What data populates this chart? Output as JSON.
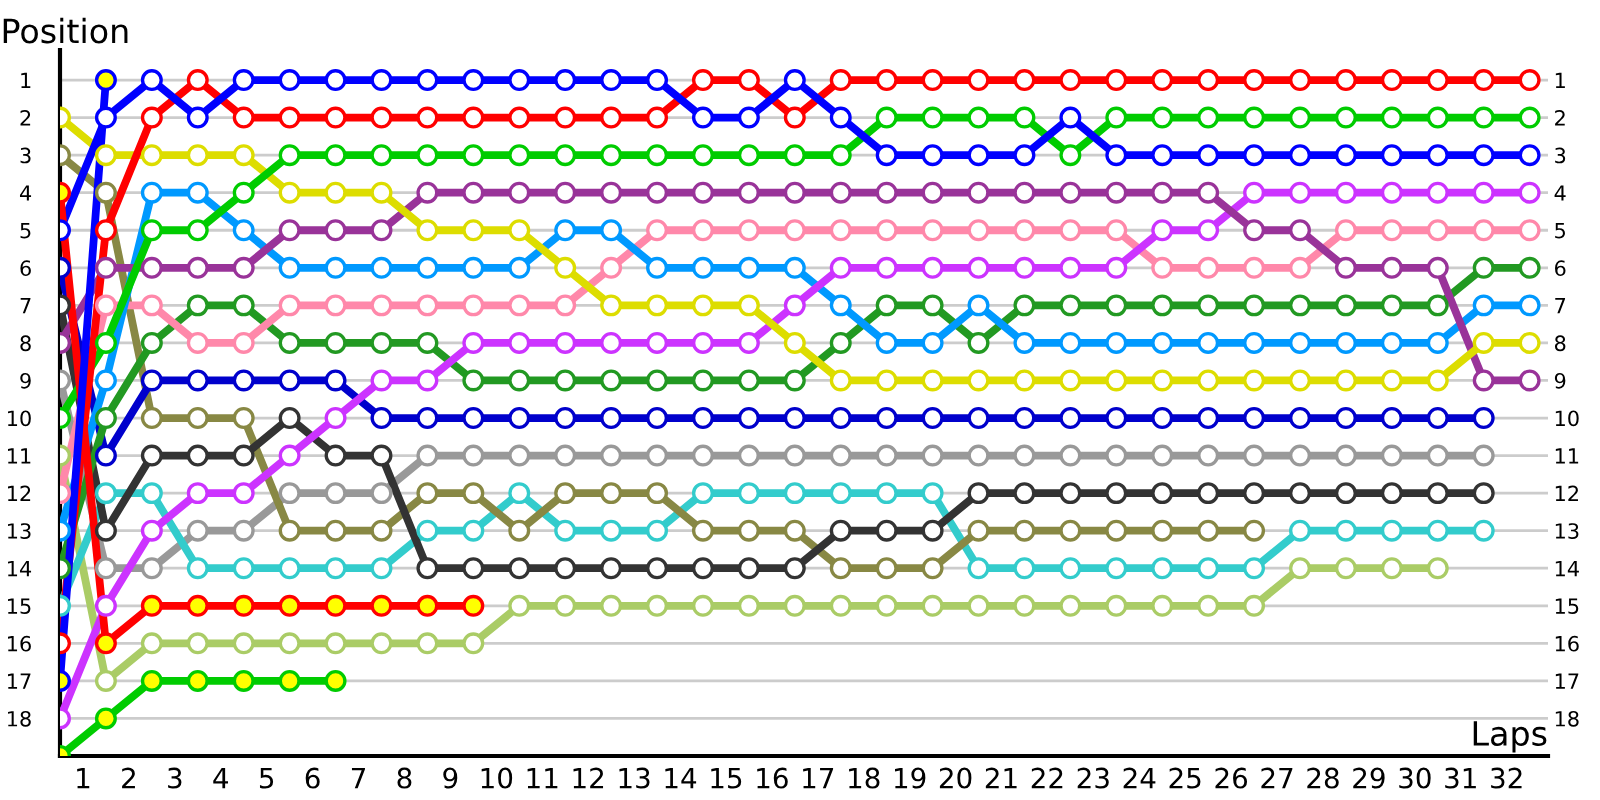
{
  "chart_data": {
    "type": "line",
    "xlabel": "Laps",
    "ylabel": "Position",
    "marker": "circle",
    "line_style": "solid",
    "grid": true,
    "x": [
      0,
      1,
      2,
      3,
      4,
      5,
      6,
      7,
      8,
      9,
      10,
      11,
      12,
      13,
      14,
      15,
      16,
      17,
      18,
      19,
      20,
      21,
      22,
      23,
      24,
      25,
      26,
      27,
      28,
      29,
      30,
      31,
      32
    ],
    "xlim": [
      0,
      32.4
    ],
    "xticks": [
      {
        "value": 0.5,
        "label": "1"
      },
      {
        "value": 1.5,
        "label": "2"
      },
      {
        "value": 2.5,
        "label": "3"
      },
      {
        "value": 3.5,
        "label": "4"
      },
      {
        "value": 4.5,
        "label": "5"
      },
      {
        "value": 5.5,
        "label": "6"
      },
      {
        "value": 6.5,
        "label": "7"
      },
      {
        "value": 7.5,
        "label": "8"
      },
      {
        "value": 8.5,
        "label": "9"
      },
      {
        "value": 9.5,
        "label": "10"
      },
      {
        "value": 10.5,
        "label": "11"
      },
      {
        "value": 11.5,
        "label": "12"
      },
      {
        "value": 12.5,
        "label": "13"
      },
      {
        "value": 13.5,
        "label": "14"
      },
      {
        "value": 14.5,
        "label": "15"
      },
      {
        "value": 15.5,
        "label": "16"
      },
      {
        "value": 16.5,
        "label": "17"
      },
      {
        "value": 17.5,
        "label": "18"
      },
      {
        "value": 18.5,
        "label": "19"
      },
      {
        "value": 19.5,
        "label": "20"
      },
      {
        "value": 20.5,
        "label": "21"
      },
      {
        "value": 21.5,
        "label": "22"
      },
      {
        "value": 22.5,
        "label": "23"
      },
      {
        "value": 23.5,
        "label": "24"
      },
      {
        "value": 24.5,
        "label": "25"
      },
      {
        "value": 25.5,
        "label": "26"
      },
      {
        "value": 26.5,
        "label": "27"
      },
      {
        "value": 27.5,
        "label": "28"
      },
      {
        "value": 28.5,
        "label": "29"
      },
      {
        "value": 29.5,
        "label": "30"
      },
      {
        "value": 30.5,
        "label": "31"
      },
      {
        "value": 31.5,
        "label": "32"
      }
    ],
    "ylim": [
      19,
      0.2
    ],
    "yticks": [
      1,
      2,
      3,
      4,
      5,
      6,
      7,
      8,
      9,
      10,
      11,
      12,
      13,
      14,
      15,
      16,
      17,
      18
    ],
    "y2lim": [
      19,
      0.2
    ],
    "y2ticks": [
      1,
      2,
      3,
      4,
      5,
      6,
      7,
      8,
      9,
      10,
      11,
      12,
      13,
      14,
      15,
      16,
      17,
      18
    ],
    "series": [
      {
        "color": "#aacc66",
        "values": [
          11,
          17,
          16,
          16,
          16,
          16,
          16,
          16,
          16,
          16,
          15,
          15,
          15,
          15,
          15,
          15,
          15,
          15,
          15,
          15,
          15,
          15,
          15,
          15,
          15,
          15,
          15,
          14,
          14,
          14,
          14,
          null,
          null
        ]
      },
      {
        "color": "#999999",
        "values": [
          9,
          14,
          14,
          13,
          13,
          12,
          12,
          12,
          11,
          11,
          11,
          11,
          11,
          11,
          11,
          11,
          11,
          11,
          11,
          11,
          11,
          11,
          11,
          11,
          11,
          11,
          11,
          11,
          11,
          11,
          11,
          11,
          null
        ]
      },
      {
        "color": "#33cccc",
        "values": [
          15,
          12,
          12,
          14,
          14,
          14,
          14,
          14,
          13,
          13,
          12,
          13,
          13,
          13,
          12,
          12,
          12,
          12,
          12,
          12,
          14,
          14,
          14,
          14,
          14,
          14,
          14,
          13,
          13,
          13,
          13,
          13,
          null
        ]
      },
      {
        "color": "#888844",
        "values": [
          3,
          4,
          10,
          10,
          10,
          13,
          13,
          13,
          12,
          12,
          13,
          12,
          12,
          12,
          13,
          13,
          13,
          14,
          14,
          14,
          13,
          13,
          13,
          13,
          13,
          13,
          13,
          null,
          null,
          null,
          null,
          null,
          null
        ]
      },
      {
        "color": "#333333",
        "values": [
          7,
          13,
          11,
          11,
          11,
          10,
          11,
          11,
          14,
          14,
          14,
          14,
          14,
          14,
          14,
          14,
          14,
          13,
          13,
          13,
          12,
          12,
          12,
          12,
          12,
          12,
          12,
          12,
          12,
          12,
          12,
          12,
          null
        ]
      },
      {
        "color": "#0000cc",
        "values": [
          6,
          11,
          9,
          9,
          9,
          9,
          9,
          10,
          10,
          10,
          10,
          10,
          10,
          10,
          10,
          10,
          10,
          10,
          10,
          10,
          10,
          10,
          10,
          10,
          10,
          10,
          10,
          10,
          10,
          10,
          10,
          10,
          null
        ]
      },
      {
        "color": "#229922",
        "values": [
          14,
          10,
          8,
          7,
          7,
          8,
          8,
          8,
          8,
          9,
          9,
          9,
          9,
          9,
          9,
          9,
          9,
          8,
          7,
          7,
          8,
          7,
          7,
          7,
          7,
          7,
          7,
          7,
          7,
          7,
          7,
          6,
          6
        ]
      },
      {
        "color": "#ff88aa",
        "values": [
          12,
          7,
          7,
          8,
          8,
          7,
          7,
          7,
          7,
          7,
          7,
          7,
          6,
          5,
          5,
          5,
          5,
          5,
          5,
          5,
          5,
          5,
          5,
          5,
          6,
          6,
          6,
          6,
          5,
          5,
          5,
          5,
          5
        ]
      },
      {
        "color": "#0099ff",
        "values": [
          13,
          9,
          4,
          4,
          5,
          6,
          6,
          6,
          6,
          6,
          6,
          5,
          5,
          6,
          6,
          6,
          6,
          7,
          8,
          8,
          7,
          8,
          8,
          8,
          8,
          8,
          8,
          8,
          8,
          8,
          8,
          7,
          7
        ]
      },
      {
        "color": "#cc33ff",
        "values": [
          18,
          15,
          13,
          12,
          12,
          11,
          10,
          9,
          9,
          8,
          8,
          8,
          8,
          8,
          8,
          8,
          7,
          6,
          6,
          6,
          6,
          6,
          6,
          6,
          5,
          5,
          4,
          4,
          4,
          4,
          4,
          4,
          4
        ]
      },
      {
        "color": "#993399",
        "values": [
          8,
          6,
          6,
          6,
          6,
          5,
          5,
          5,
          4,
          4,
          4,
          4,
          4,
          4,
          4,
          4,
          4,
          4,
          4,
          4,
          4,
          4,
          4,
          4,
          4,
          4,
          5,
          5,
          6,
          6,
          6,
          9,
          9
        ]
      },
      {
        "color": "#dddd00",
        "values": [
          2,
          3,
          3,
          3,
          3,
          4,
          4,
          4,
          5,
          5,
          5,
          6,
          7,
          7,
          7,
          7,
          8,
          9,
          9,
          9,
          9,
          9,
          9,
          9,
          9,
          9,
          9,
          9,
          9,
          9,
          9,
          8,
          8
        ]
      },
      {
        "color": "#00cc00",
        "values": [
          10,
          8,
          5,
          5,
          4,
          3,
          3,
          3,
          3,
          3,
          3,
          3,
          3,
          3,
          3,
          3,
          3,
          3,
          2,
          2,
          2,
          2,
          3,
          2,
          2,
          2,
          2,
          2,
          2,
          2,
          2,
          2,
          2
        ]
      },
      {
        "color": "#ff0000",
        "values": [
          16,
          5,
          2,
          1,
          2,
          2,
          2,
          2,
          2,
          2,
          2,
          2,
          2,
          2,
          1,
          1,
          2,
          1,
          1,
          1,
          1,
          1,
          1,
          1,
          1,
          1,
          1,
          1,
          1,
          1,
          1,
          1,
          1
        ]
      },
      {
        "color": "#0000ff",
        "values": [
          5,
          2,
          1,
          2,
          1,
          1,
          1,
          1,
          1,
          1,
          1,
          1,
          1,
          1,
          2,
          2,
          1,
          2,
          3,
          3,
          3,
          3,
          2,
          3,
          3,
          3,
          3,
          3,
          3,
          3,
          3,
          3,
          3
        ]
      },
      {
        "color": "#ff0000",
        "colors": [
          "#ffff00",
          "#ffff00",
          "#ffff00",
          "#ffff00",
          "#ffff00",
          "#ffff00",
          "#ffff00",
          "#ffff00",
          "#ffff00",
          "#ffff00",
          null,
          null,
          null,
          null,
          null,
          null,
          null,
          null,
          null,
          null,
          null,
          null,
          null,
          null,
          null,
          null,
          null,
          null,
          null,
          null,
          null,
          null,
          null
        ],
        "values": [
          4,
          16,
          15,
          15,
          15,
          15,
          15,
          15,
          15,
          15,
          null,
          null,
          null,
          null,
          null,
          null,
          null,
          null,
          null,
          null,
          null,
          null,
          null,
          null,
          null,
          null,
          null,
          null,
          null,
          null,
          null,
          null,
          null
        ]
      },
      {
        "color": "#00cc00",
        "colors": [
          "#ffff00",
          "#ffff00",
          "#ffff00",
          "#ffff00",
          "#ffff00",
          "#ffff00",
          "#ffff00",
          null,
          null,
          null,
          null,
          null,
          null,
          null,
          null,
          null,
          null,
          null,
          null,
          null,
          null,
          null,
          null,
          null,
          null,
          null,
          null,
          null,
          null,
          null,
          null,
          null,
          null
        ],
        "values": [
          19,
          18,
          17,
          17,
          17,
          17,
          17,
          null,
          null,
          null,
          null,
          null,
          null,
          null,
          null,
          null,
          null,
          null,
          null,
          null,
          null,
          null,
          null,
          null,
          null,
          null,
          null,
          null,
          null,
          null,
          null,
          null,
          null
        ]
      },
      {
        "color": "#0000ff",
        "colors": [
          "#ffff00",
          "#ffff00",
          null,
          null,
          null,
          null,
          null,
          null,
          null,
          null,
          null,
          null,
          null,
          null,
          null,
          null,
          null,
          null,
          null,
          null,
          null,
          null,
          null,
          null,
          null,
          null,
          null,
          null,
          null,
          null,
          null,
          null,
          null
        ],
        "values": [
          17,
          1,
          null,
          null,
          null,
          null,
          null,
          null,
          null,
          null,
          null,
          null,
          null,
          null,
          null,
          null,
          null,
          null,
          null,
          null,
          null,
          null,
          null,
          null,
          null,
          null,
          null,
          null,
          null,
          null,
          null,
          null,
          null
        ]
      }
    ]
  }
}
